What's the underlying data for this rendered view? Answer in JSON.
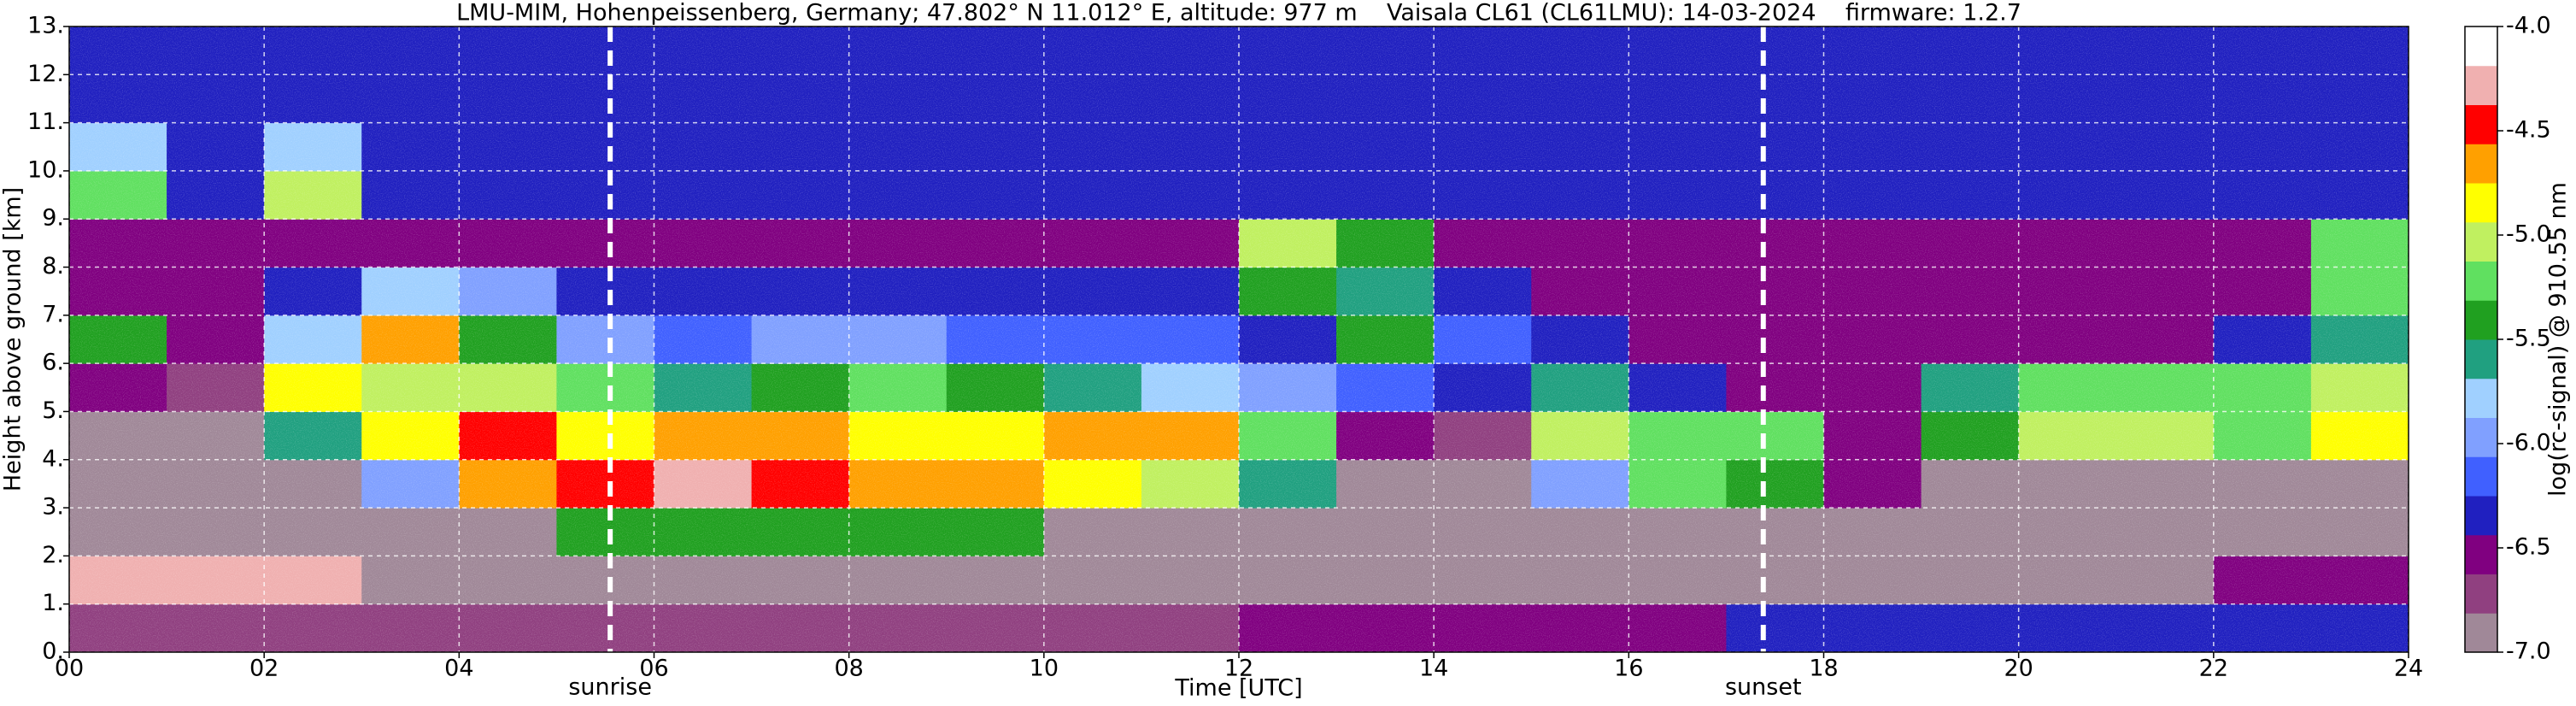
{
  "chart_data": {
    "type": "heatmap",
    "title": "LMU-MIM, Hohenpeissenberg, Germany; 47.802° N 11.012° E, altitude: 977 m    Vaisala CL61 (CL61LMU): 14-03-2024    firmware: 1.2.7",
    "xlabel": "Time [UTC]",
    "ylabel": "Height above ground [km]",
    "colorbar_label": "log(rc-signal) @ 910.55 nm",
    "xlim": [
      0,
      24
    ],
    "ylim": [
      0,
      13
    ],
    "zlim": [
      -7,
      -4
    ],
    "xticks": [
      {
        "value": 0,
        "label": "00"
      },
      {
        "value": 2,
        "label": "02"
      },
      {
        "value": 4,
        "label": "04"
      },
      {
        "value": 6,
        "label": "06"
      },
      {
        "value": 8,
        "label": "08"
      },
      {
        "value": 10,
        "label": "10"
      },
      {
        "value": 12,
        "label": "12"
      },
      {
        "value": 14,
        "label": "14"
      },
      {
        "value": 16,
        "label": "16"
      },
      {
        "value": 18,
        "label": "18"
      },
      {
        "value": 20,
        "label": "20"
      },
      {
        "value": 22,
        "label": "22"
      },
      {
        "value": 24,
        "label": "24"
      }
    ],
    "yticks": [
      {
        "value": 0,
        "label": "0."
      },
      {
        "value": 1,
        "label": "1."
      },
      {
        "value": 2,
        "label": "2."
      },
      {
        "value": 3,
        "label": "3."
      },
      {
        "value": 4,
        "label": "4."
      },
      {
        "value": 5,
        "label": "5."
      },
      {
        "value": 6,
        "label": "6."
      },
      {
        "value": 7,
        "label": "7."
      },
      {
        "value": 8,
        "label": "8."
      },
      {
        "value": 9,
        "label": "9."
      },
      {
        "value": 10,
        "label": "10."
      },
      {
        "value": 11,
        "label": "11."
      },
      {
        "value": 12,
        "label": "12."
      },
      {
        "value": 13,
        "label": "13."
      }
    ],
    "zticks": [
      {
        "value": -4,
        "label": "-4.0"
      },
      -4.5,
      {
        "value": -5,
        "label": "-5.0"
      },
      -5.5,
      {
        "value": -6,
        "label": "-6.0"
      },
      -6.5,
      {
        "value": -7,
        "label": "-7.0"
      }
    ],
    "colormap": [
      "#a08898",
      "#904080",
      "#800080",
      "#2020c0",
      "#4060ff",
      "#80a0ff",
      "#a0d0ff",
      "#20a080",
      "#20a020",
      "#60e060",
      "#c0f060",
      "#ffff00",
      "#ffa000",
      "#ff0000",
      "#f0b0b0",
      "#ffffff"
    ],
    "grid": true,
    "grid_color": "#ffffff",
    "background": "#141438",
    "annotations": [
      {
        "text": "sunrise",
        "x": 5.55
      },
      {
        "text": "sunset",
        "x": 17.38
      }
    ],
    "xbins": [
      0,
      1,
      2,
      3,
      4,
      5,
      6,
      7,
      8,
      9,
      10,
      11,
      12,
      13,
      14,
      15,
      16,
      17,
      18,
      19,
      20,
      21,
      22,
      23,
      24
    ],
    "ybins": [
      0,
      1,
      2,
      3,
      4,
      5,
      6,
      7,
      8,
      9,
      10,
      11,
      12,
      13
    ],
    "z": [
      [
        -6.7,
        -6.7,
        -6.7,
        -6.7,
        -6.7,
        -6.7,
        -6.7,
        -6.7,
        -6.7,
        -6.7,
        -6.7,
        -6.7,
        -6.6,
        -6.6,
        -6.6,
        -6.6,
        -6.6,
        -6.4,
        -6.4,
        -6.4,
        -6.4,
        -6.4,
        -6.4,
        -6.4
      ],
      [
        -4.3,
        -4.3,
        -4.3,
        -6.9,
        -6.9,
        -6.9,
        -6.9,
        -6.9,
        -6.9,
        -6.9,
        -6.9,
        -6.9,
        -6.9,
        -6.9,
        -6.9,
        -6.9,
        -6.9,
        -6.9,
        -6.9,
        -6.9,
        -6.9,
        -6.9,
        -6.5,
        -6.5
      ],
      [
        -7,
        -7,
        -7,
        -7,
        -7,
        -5.5,
        -5.5,
        -5.5,
        -5.5,
        -5.5,
        -7,
        -7,
        -7,
        -7,
        -7,
        -7,
        -7,
        -7,
        -7,
        -7,
        -7,
        -7,
        -7,
        -7
      ],
      [
        -7,
        -7,
        -7,
        -6,
        -4.6,
        -4.4,
        -4.3,
        -4.4,
        -4.6,
        -4.7,
        -4.8,
        -5,
        -5.6,
        -7,
        -7,
        -6,
        -5.2,
        -5.5,
        -6.6,
        -7,
        -7,
        -7,
        -7,
        -7
      ],
      [
        -6.9,
        -6.9,
        -5.6,
        -4.8,
        -4.5,
        -4.8,
        -4.7,
        -4.6,
        -4.8,
        -4.9,
        -4.7,
        -4.6,
        -5.3,
        -6.6,
        -6.7,
        -5,
        -5.3,
        -5.3,
        -6.5,
        -5.4,
        -5,
        -5,
        -5.2,
        -4.9
      ],
      [
        -6.6,
        -6.7,
        -4.8,
        -5,
        -5,
        -5.3,
        -5.6,
        -5.4,
        -5.2,
        -5.5,
        -5.6,
        -5.8,
        -6,
        -6.2,
        -6.3,
        -5.6,
        -6.3,
        -6.6,
        -6.6,
        -5.6,
        -5.3,
        -5.3,
        -5.3,
        -5
      ],
      [
        -5.5,
        -6.6,
        -5.8,
        -4.6,
        -5.4,
        -6,
        -6.1,
        -6,
        -6,
        -6.1,
        -6.2,
        -6.2,
        -6.3,
        -5.4,
        -6.2,
        -6.4,
        -6.6,
        -6.6,
        -6.6,
        -6.6,
        -6.6,
        -6.6,
        -6.4,
        -5.6
      ],
      [
        -6.5,
        -6.6,
        -6.4,
        -5.8,
        -6,
        -6.3,
        -6.3,
        -6.3,
        -6.3,
        -6.3,
        -6.3,
        -6.3,
        -5.4,
        -5.6,
        -6.3,
        -6.5,
        -6.6,
        -6.6,
        -6.6,
        -6.6,
        -6.6,
        -6.6,
        -6.6,
        -5.3
      ],
      [
        -6.5,
        -6.5,
        -6.5,
        -6.5,
        -6.5,
        -6.5,
        -6.5,
        -6.5,
        -6.5,
        -6.5,
        -6.5,
        -6.5,
        -5,
        -5.4,
        -6.5,
        -6.5,
        -6.5,
        -6.5,
        -6.5,
        -6.5,
        -6.5,
        -6.5,
        -6.5,
        -5.2
      ],
      [
        -5.2,
        -6.4,
        -5,
        -6.4,
        -6.4,
        -6.4,
        -6.4,
        -6.4,
        -6.4,
        -6.4,
        -6.4,
        -6.4,
        -6.4,
        -6.4,
        -6.4,
        -6.4,
        -6.4,
        -6.4,
        -6.4,
        -6.4,
        -6.4,
        -6.4,
        -6.4,
        -6.4
      ],
      [
        -5.8,
        -6.4,
        -5.8,
        -6.4,
        -6.4,
        -6.4,
        -6.4,
        -6.4,
        -6.4,
        -6.4,
        -6.4,
        -6.4,
        -6.4,
        -6.4,
        -6.4,
        -6.4,
        -6.4,
        -6.4,
        -6.4,
        -6.4,
        -6.4,
        -6.4,
        -6.4,
        -6.4
      ],
      [
        -6.4,
        -6.4,
        -6.4,
        -6.4,
        -6.4,
        -6.4,
        -6.4,
        -6.4,
        -6.4,
        -6.4,
        -6.4,
        -6.4,
        -6.4,
        -6.4,
        -6.4,
        -6.4,
        -6.4,
        -6.4,
        -6.4,
        -6.4,
        -6.4,
        -6.4,
        -6.4,
        -6.4
      ],
      [
        -6.4,
        -6.4,
        -6.4,
        -6.4,
        -6.4,
        -6.4,
        -6.4,
        -6.4,
        -6.4,
        -6.4,
        -6.4,
        -6.4,
        -6.4,
        -6.4,
        -6.4,
        -6.4,
        -6.4,
        -6.4,
        -6.4,
        -6.4,
        -6.4,
        -6.4,
        -6.4,
        -6.4
      ]
    ]
  }
}
